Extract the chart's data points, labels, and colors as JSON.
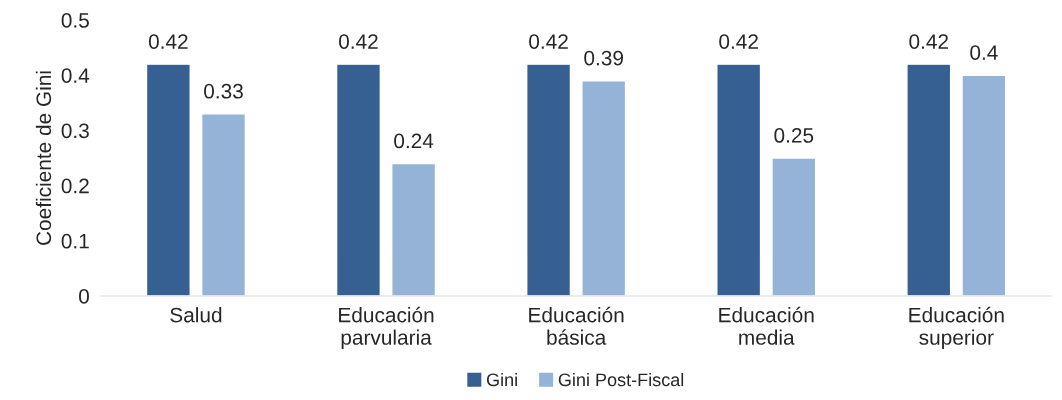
{
  "chart_data": {
    "type": "bar",
    "ylabel": "Coeficiente de Gini",
    "categories": [
      "Salud",
      "Educación\nparvularia",
      "Educación\nbásica",
      "Educación\nmedia",
      "Educación\nsuperior"
    ],
    "series": [
      {
        "name": "Gini",
        "color": "#376092",
        "values": [
          0.42,
          0.42,
          0.42,
          0.42,
          0.42
        ]
      },
      {
        "name": "Gini Post-Fiscal",
        "color": "#95b3d7",
        "values": [
          0.33,
          0.24,
          0.39,
          0.25,
          0.4
        ]
      }
    ],
    "ylim": [
      0,
      0.5
    ],
    "yticks": [
      0,
      0.1,
      0.2,
      0.3,
      0.4,
      0.5
    ],
    "data_labels": true,
    "grid": false,
    "legend": "bottom"
  }
}
